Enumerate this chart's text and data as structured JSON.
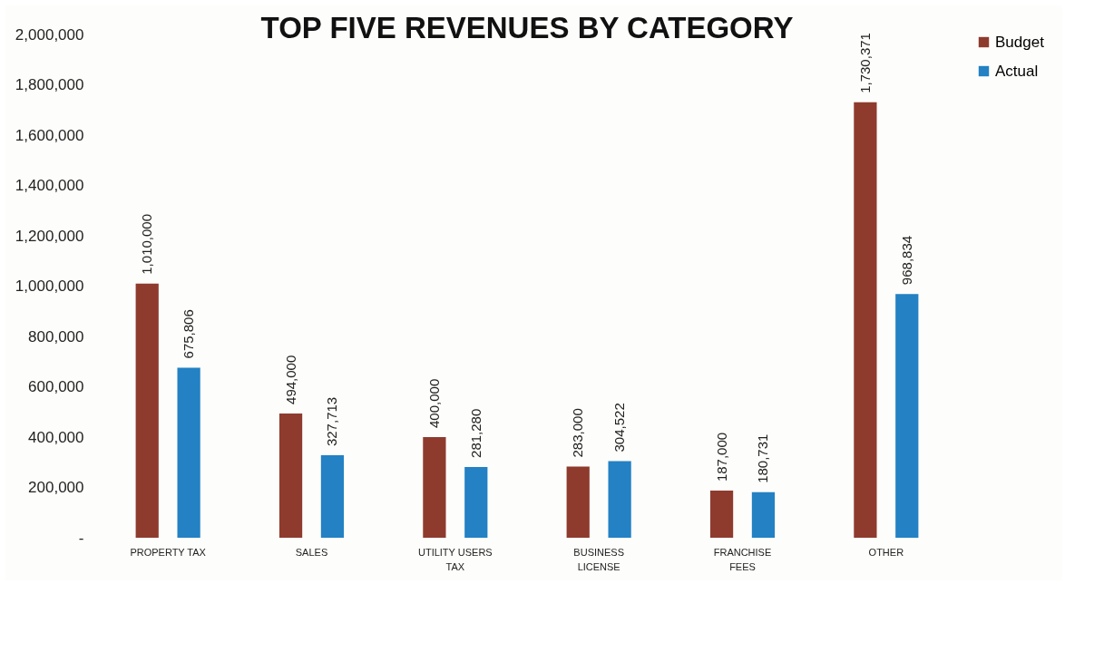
{
  "chart_data": {
    "type": "bar",
    "title": "TOP FIVE REVENUES BY CATEGORY",
    "categories": [
      "PROPERTY TAX",
      "SALES",
      "UTILITY USERS TAX",
      "BUSINESS LICENSE",
      "FRANCHISE FEES",
      "OTHER"
    ],
    "series": [
      {
        "name": "Budget",
        "color": "#8e3b2e",
        "values": [
          1010000,
          494000,
          400000,
          283000,
          187000,
          1730371
        ],
        "value_labels": [
          "1,010,000",
          "494,000",
          "400,000",
          "283,000",
          "187,000",
          "1,730,371"
        ]
      },
      {
        "name": "Actual",
        "color": "#2381c4",
        "values": [
          675806,
          327713,
          281280,
          304522,
          180731,
          968834
        ],
        "value_labels": [
          "675,806",
          "327,713",
          "281,280",
          "304,522",
          "180,731",
          "968,834"
        ]
      }
    ],
    "ylim": [
      0,
      2000000
    ],
    "yticks": [
      {
        "value": 0,
        "label": "-"
      },
      {
        "value": 200000,
        "label": "200,000"
      },
      {
        "value": 400000,
        "label": "400,000"
      },
      {
        "value": 600000,
        "label": "600,000"
      },
      {
        "value": 800000,
        "label": "800,000"
      },
      {
        "value": 1000000,
        "label": "1,000,000"
      },
      {
        "value": 1200000,
        "label": "1,200,000"
      },
      {
        "value": 1400000,
        "label": "1,400,000"
      },
      {
        "value": 1600000,
        "label": "1,600,000"
      },
      {
        "value": 1800000,
        "label": "1,800,000"
      },
      {
        "value": 2000000,
        "label": "2,000,000"
      }
    ],
    "legend": "right",
    "grid": false
  }
}
